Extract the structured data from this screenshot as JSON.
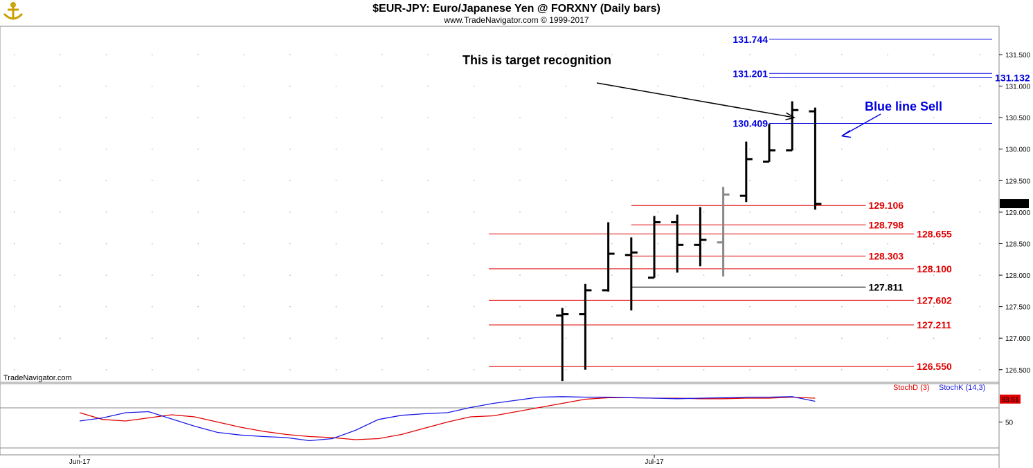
{
  "header": {
    "title": "$EUR-JPY:  Euro/Japanese Yen @ FORXNY  (Daily bars)",
    "subtitle": "www.TradeNavigator.com © 1999-2017"
  },
  "watermark": "TradeNavigator.com",
  "colors": {
    "red_level": "#e00000",
    "blue_level": "#0000e0",
    "black_level": "#000000",
    "bar": "#000000",
    "bar_last_up": "#888888",
    "stoch_d": "#e00000",
    "stoch_k": "#1a1ae6",
    "grid_dot": "#999999"
  },
  "icons": {
    "logo": "anchor-logo-icon"
  },
  "chart_data": [
    {
      "type": "ohlc",
      "title": "$EUR-JPY:  Euro/Japanese Yen @ FORXNY  (Daily bars)",
      "ylim": [
        126.3,
        131.95
      ],
      "y_ticks": [
        "131.500",
        "131.000",
        "130.500",
        "130.000",
        "129.500",
        "129.000",
        "128.500",
        "128.000",
        "127.500",
        "127.000",
        "126.500"
      ],
      "y_tick_values": [
        131.5,
        131.0,
        130.5,
        130.0,
        129.5,
        129.0,
        128.5,
        128.0,
        127.5,
        127.0,
        126.5
      ],
      "x_ticks": [
        "Jun-17",
        "Jul-17"
      ],
      "x_tick_index": [
        0,
        25
      ],
      "last_price": "129.130",
      "last_price_value": 129.13,
      "bars": [
        {
          "i": 21,
          "o": 127.36,
          "h": 127.48,
          "l": 126.32,
          "c": 127.38
        },
        {
          "i": 22,
          "o": 127.38,
          "h": 127.86,
          "l": 126.5,
          "c": 127.76
        },
        {
          "i": 23,
          "o": 127.76,
          "h": 128.84,
          "l": 127.74,
          "c": 128.34
        },
        {
          "i": 24,
          "o": 128.32,
          "h": 128.6,
          "l": 127.44,
          "c": 128.36
        },
        {
          "i": 25,
          "o": 127.96,
          "h": 128.94,
          "l": 127.96,
          "c": 128.84
        },
        {
          "i": 26,
          "o": 128.84,
          "h": 128.96,
          "l": 128.04,
          "c": 128.48
        },
        {
          "i": 27,
          "o": 128.48,
          "h": 129.08,
          "l": 128.14,
          "c": 128.56
        },
        {
          "i": 28,
          "o": 128.52,
          "h": 129.4,
          "l": 127.98,
          "c": 129.28,
          "grey": true
        },
        {
          "i": 29,
          "o": 129.26,
          "h": 130.12,
          "l": 129.16,
          "c": 129.84
        },
        {
          "i": 30,
          "o": 129.8,
          "h": 130.4,
          "l": 129.8,
          "c": 129.98
        },
        {
          "i": 31,
          "o": 129.98,
          "h": 130.76,
          "l": 129.98,
          "c": 130.62
        },
        {
          "i": 32,
          "o": 130.6,
          "h": 130.66,
          "l": 129.04,
          "c": 129.13
        }
      ],
      "levels": [
        {
          "value": 131.744,
          "label": "131.744",
          "color": "blue",
          "from_i": 30,
          "to_i": 39.7,
          "label_side": "left"
        },
        {
          "value": 131.201,
          "label": "131.201",
          "color": "blue",
          "from_i": 30,
          "to_i": 39.7,
          "label_side": "left"
        },
        {
          "value": 131.132,
          "label": "131.132",
          "color": "blue",
          "from_i": 30,
          "to_i": 39.7,
          "label_side": "right"
        },
        {
          "value": 130.409,
          "label": "130.409",
          "color": "blue",
          "from_i": 30,
          "to_i": 39.7,
          "label_side": "left"
        },
        {
          "value": 129.106,
          "label": "129.106",
          "color": "red",
          "from_i": 24,
          "to_i": 34.2,
          "label_side": "right"
        },
        {
          "value": 128.798,
          "label": "128.798",
          "color": "red",
          "from_i": 24,
          "to_i": 34.2,
          "label_side": "right"
        },
        {
          "value": 128.655,
          "label": "128.655",
          "color": "red",
          "from_i": 17.8,
          "to_i": 36.3,
          "label_side": "right"
        },
        {
          "value": 128.303,
          "label": "128.303",
          "color": "red",
          "from_i": 24,
          "to_i": 34.2,
          "label_side": "right"
        },
        {
          "value": 128.1,
          "label": "128.100",
          "color": "red",
          "from_i": 17.8,
          "to_i": 36.3,
          "label_side": "right"
        },
        {
          "value": 127.811,
          "label": "127.811",
          "color": "black",
          "from_i": 24,
          "to_i": 34.2,
          "label_side": "right"
        },
        {
          "value": 127.602,
          "label": "127.602",
          "color": "red",
          "from_i": 17.8,
          "to_i": 36.3,
          "label_side": "right"
        },
        {
          "value": 127.211,
          "label": "127.211",
          "color": "red",
          "from_i": 17.8,
          "to_i": 36.3,
          "label_side": "right"
        },
        {
          "value": 126.55,
          "label": "126.550",
          "color": "red",
          "from_i": 17.8,
          "to_i": 36.3,
          "label_side": "right"
        }
      ],
      "annotations": [
        {
          "text": "This is target recognition",
          "color": "black",
          "arrow_to_i": 31.1,
          "arrow_to_value": 130.5
        },
        {
          "text": "Blue line Sell",
          "color": "blue",
          "arrow_to_i": 33.1,
          "arrow_to_value": 130.1
        }
      ]
    },
    {
      "type": "line",
      "title": "",
      "ylim": [
        0,
        100
      ],
      "y_ticks": [
        "50"
      ],
      "y_tick_values": [
        50
      ],
      "last_value": "93.61",
      "last_value_num": 93.61,
      "series": [
        {
          "name": "StochD (3)",
          "color": "red",
          "x": [
            0,
            1,
            2,
            3,
            4,
            5,
            6,
            7,
            8,
            9,
            10,
            11,
            12,
            13,
            14,
            15,
            16,
            17,
            18,
            19,
            20,
            21,
            22,
            23,
            24,
            25,
            26,
            27,
            28,
            29,
            30,
            31,
            32
          ],
          "values": [
            68,
            55,
            52,
            58,
            64,
            60,
            50,
            40,
            32,
            26,
            22,
            20,
            16,
            18,
            26,
            38,
            50,
            60,
            62,
            70,
            78,
            86,
            94,
            97,
            97,
            96,
            96,
            95,
            95,
            96,
            96,
            98,
            96
          ]
        },
        {
          "name": "StochK (14,3)",
          "color": "blue",
          "x": [
            0,
            1,
            2,
            3,
            4,
            5,
            6,
            7,
            8,
            9,
            10,
            11,
            12,
            13,
            14,
            15,
            16,
            17,
            18,
            19,
            20,
            21,
            22,
            23,
            24,
            25,
            26,
            27,
            28,
            29,
            30,
            31,
            32
          ],
          "values": [
            52,
            58,
            68,
            70,
            56,
            42,
            30,
            25,
            22,
            20,
            14,
            18,
            34,
            55,
            63,
            66,
            68,
            78,
            86,
            92,
            98,
            99,
            98,
            98,
            97,
            96,
            95,
            96,
            97,
            98,
            98,
            99,
            90
          ]
        }
      ]
    }
  ]
}
